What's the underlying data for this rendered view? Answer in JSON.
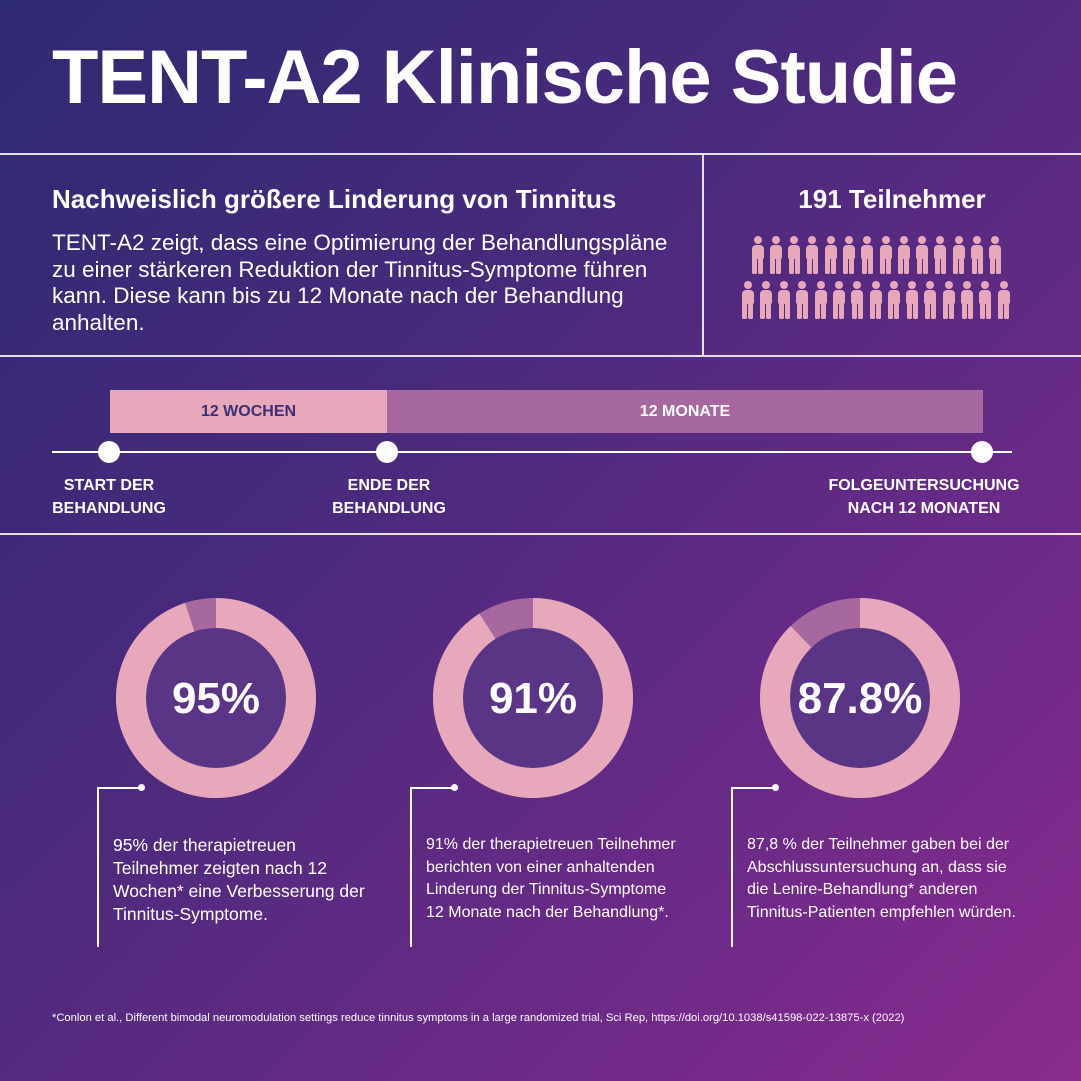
{
  "title": "TENT-A2 Klinische Studie",
  "intro": {
    "heading": "Nachweislich größere Linderung von Tinnitus",
    "body": "TENT-A2 zeigt, dass eine Optimierung der Behandlungspläne zu einer stärkeren Reduktion der Tinnitus-Symptome führen kann. Diese kann bis zu 12 Monate nach der Behandlung anhalten."
  },
  "participants": {
    "heading": "191 Teilnehmer",
    "icon": "person-icon",
    "rows": [
      14,
      15
    ]
  },
  "timeline": {
    "phase_weeks": "12 WOCHEN",
    "phase_months": "12 MONATE",
    "start_line1": "START DER",
    "start_line2": "BEHANDLUNG",
    "end_line1": "ENDE DER",
    "end_line2": "BEHANDLUNG",
    "followup_line1": "FOLGEUNTERSUCHUNG",
    "followup_line2": "NACH 12 MONATEN",
    "colors": {
      "weeks": "#e8a8bc",
      "months": "#a7679f"
    }
  },
  "stats": [
    {
      "label": "95%",
      "fraction": 0.95,
      "description": "95% der therapietreuen Teilnehmer zeigten nach 12 Wochen* eine Verbesserung der Tinnitus-Symptome."
    },
    {
      "label": "91%",
      "fraction": 0.91,
      "description": "91% der therapietreuen Teilnehmer berichten von einer anhaltenden Linderung der Tinnitus-Symptome 12 Monate nach der Behandlung*."
    },
    {
      "label": "87.8%",
      "fraction": 0.878,
      "description": "87,8 % der Teilnehmer gaben bei der Abschlussuntersuchung an, dass sie die Lenire-Behandlung* anderen Tinnitus-Patienten empfehlen würden."
    }
  ],
  "colors": {
    "ring": "#e8a8bc",
    "ring_rest": "#a7679f",
    "ring_center": "#5b3585"
  },
  "footnote": "*Conlon et al., Different bimodal neuromodulation settings reduce tinnitus symptoms in a large randomized trial, Sci Rep, https://doi.org/10.1038/s41598-022-13875-x (2022)"
}
